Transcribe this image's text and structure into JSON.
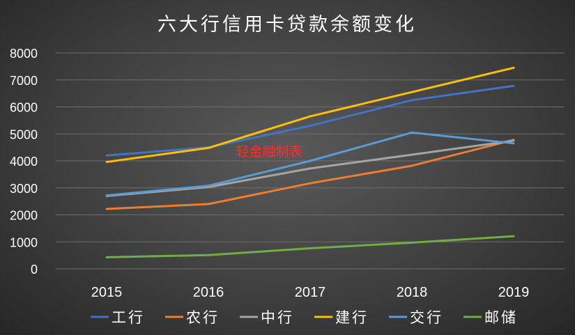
{
  "chart_data": {
    "type": "line",
    "title": "六大行信用卡贷款余额变化",
    "watermark": "轻金融制表",
    "xlabel": "",
    "ylabel": "",
    "categories": [
      "2015",
      "2016",
      "2017",
      "2018",
      "2019"
    ],
    "ylim": [
      0,
      8000
    ],
    "yticks": [
      "0",
      "1000",
      "2000",
      "3000",
      "4000",
      "5000",
      "6000",
      "7000",
      "8000"
    ],
    "grid": true,
    "legend_position": "bottom",
    "series": [
      {
        "name": "工行",
        "color": "#4472c4",
        "values": [
          4200,
          4500,
          5300,
          6250,
          6780
        ]
      },
      {
        "name": "农行",
        "color": "#ed7d31",
        "values": [
          2220,
          2400,
          3170,
          3820,
          4780
        ]
      },
      {
        "name": "中行",
        "color": "#a5a5a5",
        "values": [
          2700,
          3030,
          3720,
          4230,
          4750
        ]
      },
      {
        "name": "建行",
        "color": "#ffc000",
        "values": [
          3960,
          4480,
          5650,
          6550,
          7450
        ]
      },
      {
        "name": "交行",
        "color": "#5b9bd5",
        "values": [
          2720,
          3080,
          4000,
          5050,
          4650
        ]
      },
      {
        "name": "邮储",
        "color": "#70ad47",
        "values": [
          430,
          510,
          760,
          970,
          1210
        ]
      }
    ]
  }
}
